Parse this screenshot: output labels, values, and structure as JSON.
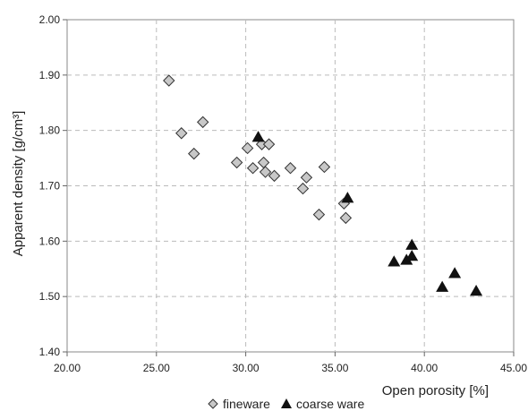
{
  "chart_data": {
    "type": "scatter",
    "xlabel": "Open porosity [%]",
    "ylabel": "Apparent density [g/cm³]",
    "xlim": [
      20,
      45
    ],
    "ylim": [
      1.4,
      2.0
    ],
    "x_ticks": [
      "20.00",
      "25.00",
      "30.00",
      "35.00",
      "40.00",
      "45.00"
    ],
    "y_ticks": [
      "1.40",
      "1.50",
      "1.60",
      "1.70",
      "1.80",
      "1.90",
      "2.00"
    ],
    "grid": "dashed",
    "legend": "bottom",
    "series": [
      {
        "name": "fineware",
        "marker": "diamond",
        "color": "#c8c8c8",
        "points": [
          [
            25.7,
            1.89
          ],
          [
            26.4,
            1.795
          ],
          [
            27.6,
            1.815
          ],
          [
            27.1,
            1.758
          ],
          [
            29.5,
            1.742
          ],
          [
            30.1,
            1.768
          ],
          [
            30.4,
            1.732
          ],
          [
            30.9,
            1.775
          ],
          [
            31.0,
            1.742
          ],
          [
            31.1,
            1.725
          ],
          [
            31.3,
            1.775
          ],
          [
            31.6,
            1.718
          ],
          [
            32.5,
            1.732
          ],
          [
            33.2,
            1.695
          ],
          [
            33.4,
            1.715
          ],
          [
            34.1,
            1.648
          ],
          [
            34.4,
            1.734
          ],
          [
            35.5,
            1.668
          ],
          [
            35.6,
            1.642
          ]
        ]
      },
      {
        "name": "coarse ware",
        "marker": "triangle",
        "color": "#111111",
        "points": [
          [
            30.7,
            1.788
          ],
          [
            35.7,
            1.678
          ],
          [
            38.3,
            1.563
          ],
          [
            39.0,
            1.566
          ],
          [
            39.3,
            1.593
          ],
          [
            39.3,
            1.573
          ],
          [
            41.0,
            1.517
          ],
          [
            41.7,
            1.542
          ],
          [
            42.9,
            1.51
          ]
        ]
      }
    ]
  }
}
